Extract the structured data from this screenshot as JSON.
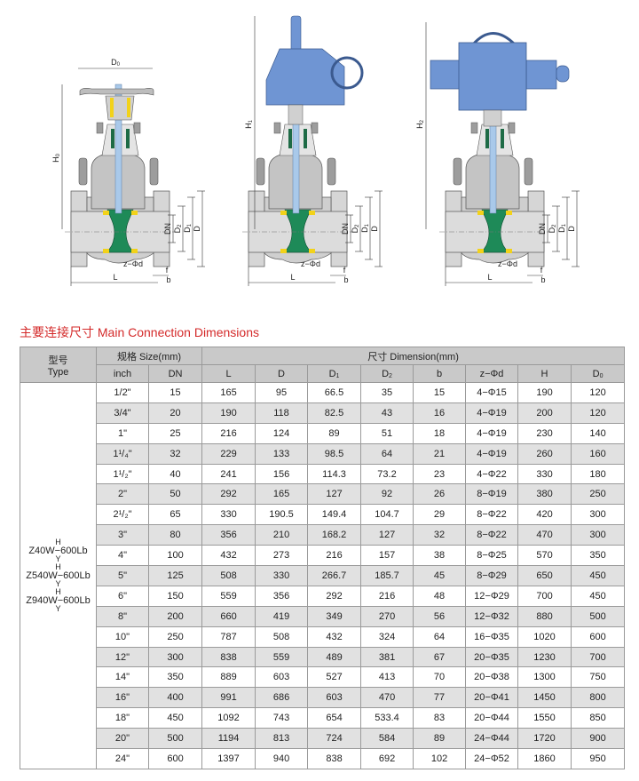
{
  "section_title": "主要连接尺寸 Main Connection Dimensions",
  "drawings": {
    "dims": {
      "D0": {
        "base": "D",
        "sub": "0"
      },
      "H0": {
        "base": "H",
        "sub": "0"
      },
      "H1": {
        "base": "H",
        "sub": "1"
      },
      "H2": {
        "base": "H",
        "sub": "2"
      },
      "DN": {
        "base": "DN",
        "sub": ""
      },
      "D2": {
        "base": "D",
        "sub": "2"
      },
      "D1": {
        "base": "D",
        "sub": "1"
      },
      "D": {
        "base": "D",
        "sub": ""
      },
      "L": {
        "base": "L",
        "sub": ""
      },
      "zd": {
        "base": "z−Φd",
        "sub": ""
      },
      "f": {
        "base": "f",
        "sub": ""
      },
      "b": {
        "base": "b",
        "sub": ""
      }
    },
    "colors": {
      "body": "#d6d6d6",
      "actuator": "#6f95d3",
      "wedge": "#1e8a58",
      "seat": "#f2d21a",
      "stem": "#a9c9ea"
    }
  },
  "table": {
    "header": {
      "type_cn": "型号",
      "type_en": "Type",
      "size_group": "规格 Size(mm)",
      "dim_group": "尺寸 Dimension(mm)",
      "columns": [
        {
          "base": "inch",
          "sub": ""
        },
        {
          "base": "DN",
          "sub": ""
        },
        {
          "base": "L",
          "sub": ""
        },
        {
          "base": "D",
          "sub": ""
        },
        {
          "base": "D",
          "sub": "1"
        },
        {
          "base": "D",
          "sub": "2"
        },
        {
          "base": "b",
          "sub": ""
        },
        {
          "base": "z−Φd",
          "sub": ""
        },
        {
          "base": "H",
          "sub": ""
        },
        {
          "base": "D",
          "sub": "0"
        }
      ]
    },
    "type_models": [
      {
        "top": "H",
        "name": "Z40W−600Lb",
        "bottom": "Y"
      },
      {
        "top": "H",
        "name": "Z540W−600Lb",
        "bottom": "Y"
      },
      {
        "top": "H",
        "name": "Z940W−600Lb",
        "bottom": "Y"
      }
    ],
    "rows": [
      [
        "1/2\"",
        "15",
        "165",
        "95",
        "66.5",
        "35",
        "15",
        "4−Φ15",
        "190",
        "120"
      ],
      [
        "3/4\"",
        "20",
        "190",
        "118",
        "82.5",
        "43",
        "16",
        "4−Φ19",
        "200",
        "120"
      ],
      [
        "1\"",
        "25",
        "216",
        "124",
        "89",
        "51",
        "18",
        "4−Φ19",
        "230",
        "140"
      ],
      [
        "1¹/₄\"",
        "32",
        "229",
        "133",
        "98.5",
        "64",
        "21",
        "4−Φ19",
        "260",
        "160"
      ],
      [
        "1¹/₂\"",
        "40",
        "241",
        "156",
        "114.3",
        "73.2",
        "23",
        "4−Φ22",
        "330",
        "180"
      ],
      [
        "2\"",
        "50",
        "292",
        "165",
        "127",
        "92",
        "26",
        "8−Φ19",
        "380",
        "250"
      ],
      [
        "2¹/₂\"",
        "65",
        "330",
        "190.5",
        "149.4",
        "104.7",
        "29",
        "8−Φ22",
        "420",
        "300"
      ],
      [
        "3\"",
        "80",
        "356",
        "210",
        "168.2",
        "127",
        "32",
        "8−Φ22",
        "470",
        "300"
      ],
      [
        "4\"",
        "100",
        "432",
        "273",
        "216",
        "157",
        "38",
        "8−Φ25",
        "570",
        "350"
      ],
      [
        "5\"",
        "125",
        "508",
        "330",
        "266.7",
        "185.7",
        "45",
        "8−Φ29",
        "650",
        "450"
      ],
      [
        "6\"",
        "150",
        "559",
        "356",
        "292",
        "216",
        "48",
        "12−Φ29",
        "700",
        "450"
      ],
      [
        "8\"",
        "200",
        "660",
        "419",
        "349",
        "270",
        "56",
        "12−Φ32",
        "880",
        "500"
      ],
      [
        "10\"",
        "250",
        "787",
        "508",
        "432",
        "324",
        "64",
        "16−Φ35",
        "1020",
        "600"
      ],
      [
        "12\"",
        "300",
        "838",
        "559",
        "489",
        "381",
        "67",
        "20−Φ35",
        "1230",
        "700"
      ],
      [
        "14\"",
        "350",
        "889",
        "603",
        "527",
        "413",
        "70",
        "20−Φ38",
        "1300",
        "750"
      ],
      [
        "16\"",
        "400",
        "991",
        "686",
        "603",
        "470",
        "77",
        "20−Φ41",
        "1450",
        "800"
      ],
      [
        "18\"",
        "450",
        "1092",
        "743",
        "654",
        "533.4",
        "83",
        "20−Φ44",
        "1550",
        "850"
      ],
      [
        "20\"",
        "500",
        "1194",
        "813",
        "724",
        "584",
        "89",
        "24−Φ44",
        "1720",
        "900"
      ],
      [
        "24\"",
        "600",
        "1397",
        "940",
        "838",
        "692",
        "102",
        "24−Φ52",
        "1860",
        "950"
      ]
    ]
  }
}
